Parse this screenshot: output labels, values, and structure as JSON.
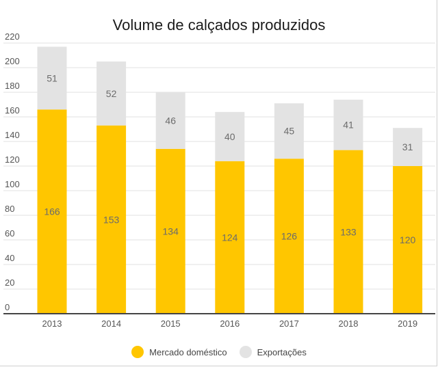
{
  "chart_data": {
    "type": "bar",
    "stacked": true,
    "title": "Volume de calçados produzidos",
    "categories": [
      "2013",
      "2014",
      "2015",
      "2016",
      "2017",
      "2018",
      "2019"
    ],
    "series": [
      {
        "name": "Mercado doméstico",
        "color": "#FFC600",
        "values": [
          166,
          153,
          134,
          124,
          126,
          133,
          120
        ]
      },
      {
        "name": "Exportações",
        "color": "#E3E3E3",
        "values": [
          51,
          52,
          46,
          40,
          45,
          41,
          31
        ]
      }
    ],
    "yticks": [
      0,
      20,
      40,
      60,
      80,
      100,
      120,
      140,
      160,
      180,
      200,
      220
    ],
    "ylim": [
      0,
      220
    ],
    "xlabel": "",
    "ylabel": "",
    "grid": true,
    "legend": "bottom-center"
  }
}
